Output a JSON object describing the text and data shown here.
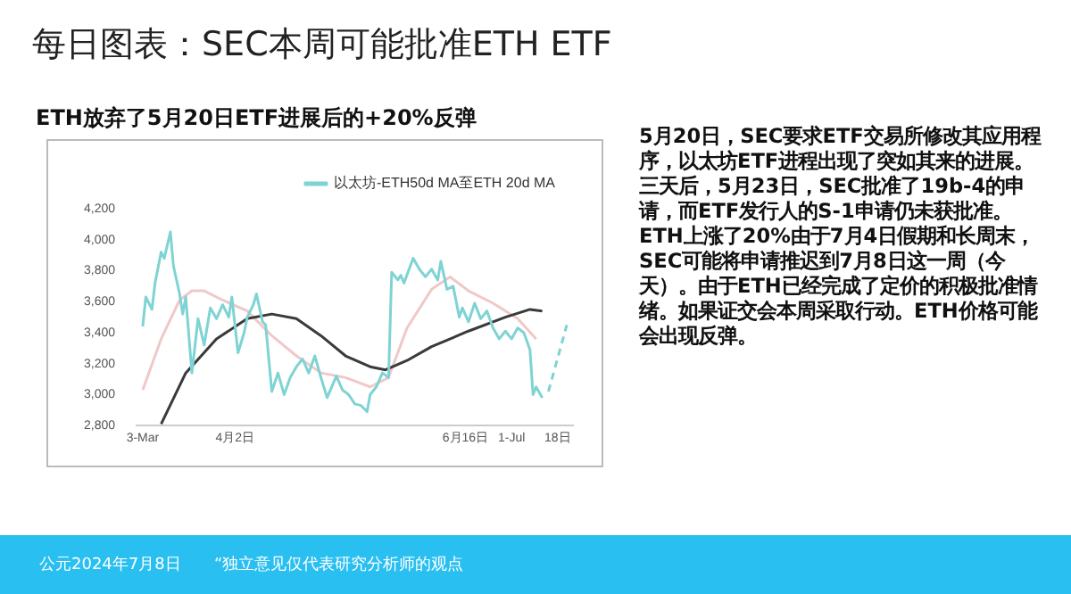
{
  "chart_data": {
    "type": "line",
    "title": "每日图表：SEC本周可能批准ETH ETF",
    "subtitle": "ETH放弃了5月20日ETF进展后的+20%反弹",
    "annotations": [
      "5月20日，SEC要求ETF交易所修改其应用程序，以太坊ETF进程出现了突如其来的进展。三天后，5月23日，SEC批准了19b-4的申请，而ETF发行人的S-1申请仍未获批准。ETH上涨了20%由于7月4日假期和长周末，SEC可能将申请推迟到7月8日这一周（今天）。由于ETH已经完成了定价的积极批准情绪。如果证交会本周采取行动。ETH价格可能会出现反弹。",
      "公元2024年7月8日",
      "“独立意见仅代表研究分析师的观点"
    ],
    "series": [
      {
        "name": "以太坊-ETH50d MA至ETH 20d MA",
        "color": "#7fd3d3",
        "x": [
          "2024-03-03",
          "2024-03-04",
          "2024-03-06",
          "2024-03-07",
          "2024-03-09",
          "2024-03-10",
          "2024-03-12",
          "2024-03-13",
          "2024-03-15",
          "2024-03-16",
          "2024-03-17",
          "2024-03-19",
          "2024-03-21",
          "2024-03-23",
          "2024-03-25",
          "2024-03-27",
          "2024-03-29",
          "2024-03-31",
          "2024-04-01",
          "2024-04-03",
          "2024-04-05",
          "2024-04-06",
          "2024-04-08",
          "2024-04-09",
          "2024-04-11",
          "2024-04-12",
          "2024-04-14",
          "2024-04-16",
          "2024-04-18",
          "2024-04-20",
          "2024-04-22",
          "2024-04-24",
          "2024-04-26",
          "2024-04-28",
          "2024-04-30",
          "2024-05-02",
          "2024-05-05",
          "2024-05-07",
          "2024-05-09",
          "2024-05-11",
          "2024-05-13",
          "2024-05-15",
          "2024-05-16",
          "2024-05-18",
          "2024-05-20",
          "2024-05-22",
          "2024-05-23",
          "2024-05-25",
          "2024-05-26",
          "2024-05-27",
          "2024-05-30",
          "2024-06-01",
          "2024-06-03",
          "2024-06-05",
          "2024-06-07",
          "2024-06-08",
          "2024-06-10",
          "2024-06-12",
          "2024-06-14",
          "2024-06-15",
          "2024-06-17",
          "2024-06-19",
          "2024-06-21",
          "2024-06-23",
          "2024-06-25",
          "2024-06-27",
          "2024-06-29",
          "2024-07-01",
          "2024-07-03",
          "2024-07-05",
          "2024-07-07",
          "2024-07-08",
          "2024-07-09",
          "2024-07-11"
        ],
        "values": [
          3440,
          3630,
          3550,
          3720,
          3920,
          3880,
          4050,
          3830,
          3650,
          3520,
          3630,
          3140,
          3490,
          3320,
          3560,
          3490,
          3580,
          3500,
          3630,
          3270,
          3400,
          3500,
          3580,
          3650,
          3470,
          3450,
          3020,
          3140,
          3000,
          3110,
          3180,
          3230,
          3140,
          3250,
          3110,
          2980,
          3120,
          3030,
          3000,
          2940,
          2930,
          2890,
          3000,
          3050,
          3140,
          3110,
          3790,
          3740,
          3770,
          3720,
          3880,
          3810,
          3760,
          3810,
          3740,
          3860,
          3680,
          3700,
          3500,
          3560,
          3470,
          3590,
          3490,
          3540,
          3430,
          3360,
          3410,
          3360,
          3430,
          3400,
          3290,
          3000,
          3050,
          2980
        ]
      },
      {
        "color": "#7fd3d3",
        "line_style": "dashed",
        "x": [
          "2024-07-13",
          "2024-07-19"
        ],
        "values": [
          3020,
          3450
        ]
      },
      {
        "color": "#3a3a3a",
        "x": [
          "2024-03-09",
          "2024-03-17",
          "2024-03-27",
          "2024-04-06",
          "2024-04-14",
          "2024-04-22",
          "2024-04-30",
          "2024-05-08",
          "2024-05-16",
          "2024-05-21",
          "2024-05-28",
          "2024-06-05",
          "2024-06-17",
          "2024-06-29",
          "2024-07-07",
          "2024-07-11"
        ],
        "values": [
          2810,
          3140,
          3360,
          3490,
          3520,
          3490,
          3380,
          3250,
          3180,
          3160,
          3220,
          3310,
          3410,
          3500,
          3550,
          3540
        ]
      },
      {
        "color": "#f0c8c8",
        "x": [
          "2024-03-03",
          "2024-03-09",
          "2024-03-15",
          "2024-03-19",
          "2024-03-23",
          "2024-03-29",
          "2024-04-06",
          "2024-04-14",
          "2024-04-22",
          "2024-04-30",
          "2024-05-08",
          "2024-05-16",
          "2024-05-22",
          "2024-05-28",
          "2024-06-05",
          "2024-06-11",
          "2024-06-17",
          "2024-06-25",
          "2024-07-03",
          "2024-07-09"
        ],
        "values": [
          3030,
          3360,
          3610,
          3670,
          3670,
          3610,
          3540,
          3380,
          3250,
          3140,
          3110,
          3050,
          3110,
          3430,
          3680,
          3760,
          3670,
          3590,
          3490,
          3360
        ]
      }
    ],
    "xlim": [
      "2024-03-01",
      "2024-07-21"
    ],
    "xticks": [
      {
        "value": "2024-03-03",
        "label": "3-Mar"
      },
      {
        "value": "2024-04-02",
        "label": "4月2日"
      },
      {
        "value": "2024-06-16",
        "label": "6月16日"
      },
      {
        "value": "2024-07-01",
        "label": "1-Jul"
      },
      {
        "value": "2024-07-16",
        "label": "18日"
      }
    ],
    "ylim": [
      2800,
      4200
    ],
    "yticks": [
      {
        "value": 2800,
        "label": "2,800"
      },
      {
        "value": 3000,
        "label": "3,000"
      },
      {
        "value": 3200,
        "label": "3,200"
      },
      {
        "value": 3400,
        "label": "3,400"
      },
      {
        "value": 3600,
        "label": "3,600"
      },
      {
        "value": 3800,
        "label": "3,800"
      },
      {
        "value": 4000,
        "label": "4,000"
      },
      {
        "value": 4200,
        "label": "4,200"
      }
    ],
    "grid": false,
    "legend": "top right",
    "marker": "none",
    "line_style": "solid"
  }
}
